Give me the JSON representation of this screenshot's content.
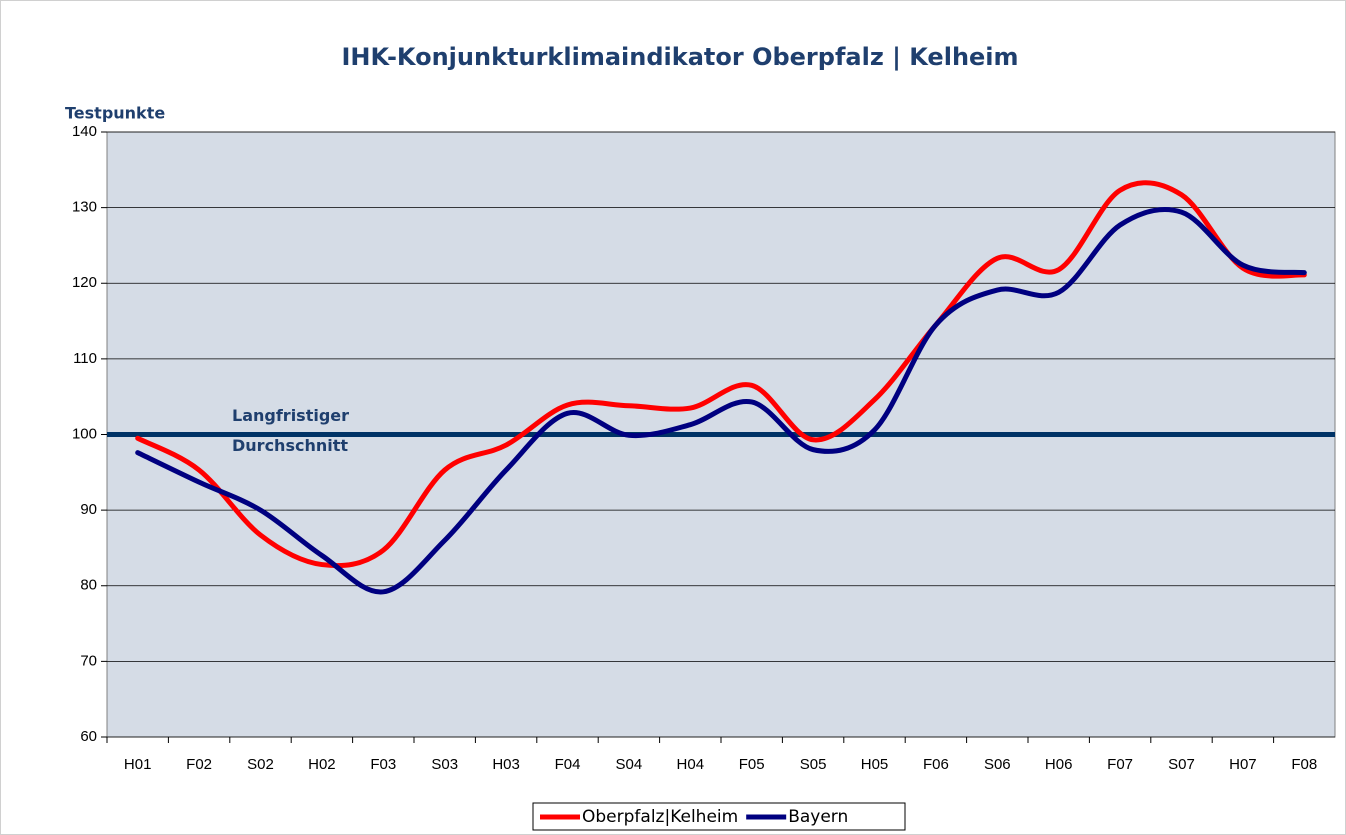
{
  "chart_data": {
    "type": "line",
    "title": "IHK-Konjunkturklimaindikator Oberpfalz | Kelheim",
    "y_label": "Testpunkte",
    "categories": [
      "H01",
      "F02",
      "S02",
      "H02",
      "F03",
      "S03",
      "H03",
      "F04",
      "S04",
      "H04",
      "F05",
      "S05",
      "H05",
      "F06",
      "S06",
      "H06",
      "F07",
      "S07",
      "H07",
      "F08"
    ],
    "series": [
      {
        "name": "Oberpfalz|Kelheim",
        "color": "#ff0000",
        "values": [
          99.5,
          95.3,
          86.7,
          82.8,
          84.7,
          95.3,
          98.6,
          103.9,
          103.8,
          103.5,
          106.5,
          99.3,
          104.6,
          114.5,
          123.3,
          121.8,
          132.3,
          131.7,
          122,
          121.1
        ]
      },
      {
        "name": "Bayern",
        "color": "#000080",
        "values": [
          97.6,
          93.7,
          90,
          84,
          79.2,
          86,
          95.3,
          102.8,
          99.9,
          101.3,
          104.3,
          98,
          100.6,
          114.5,
          119.1,
          118.8,
          127.7,
          129.4,
          122.4,
          121.4
        ]
      }
    ],
    "reference_line": {
      "value": 100,
      "color": "#003366",
      "label": [
        "Langfristiger",
        "Durchschnitt"
      ]
    },
    "ylim": [
      60,
      140
    ],
    "yticks": [
      60,
      70,
      80,
      90,
      100,
      110,
      120,
      130,
      140
    ],
    "grid": true,
    "smooth": true,
    "legend": "bottom"
  }
}
